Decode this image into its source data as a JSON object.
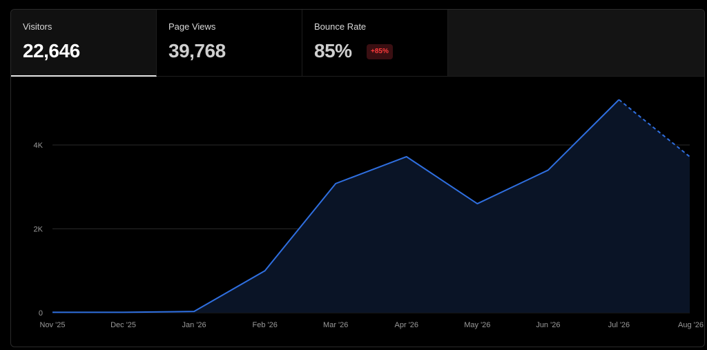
{
  "tabs": [
    {
      "label": "Visitors",
      "value": "22,646",
      "active": true
    },
    {
      "label": "Page Views",
      "value": "39,768",
      "active": false
    },
    {
      "label": "Bounce Rate",
      "value": "85%",
      "badge": "+85%",
      "active": false
    }
  ],
  "colors": {
    "line": "#2f6fe0",
    "area": "#0a1426",
    "grid": "#2a2a2a",
    "badge_text": "#ff3b3b",
    "badge_bg": "#3a0f12"
  },
  "chart_data": {
    "type": "line",
    "categories": [
      "Nov '25",
      "Dec '25",
      "Jan '26",
      "Feb '26",
      "Mar '26",
      "Apr '26",
      "May '26",
      "Jun '26",
      "Jul '26",
      "Aug '26"
    ],
    "series": [
      {
        "values": [
          10,
          10,
          30,
          1000,
          3080,
          3720,
          2600,
          3400,
          5080,
          3720
        ]
      }
    ],
    "projected_from_index": 8,
    "ylim": [
      0,
      5300
    ],
    "yticks": [
      0,
      2000,
      4000
    ],
    "ytick_labels": [
      "0",
      "2K",
      "4K"
    ],
    "grid": true,
    "xlabel": "",
    "ylabel": ""
  }
}
